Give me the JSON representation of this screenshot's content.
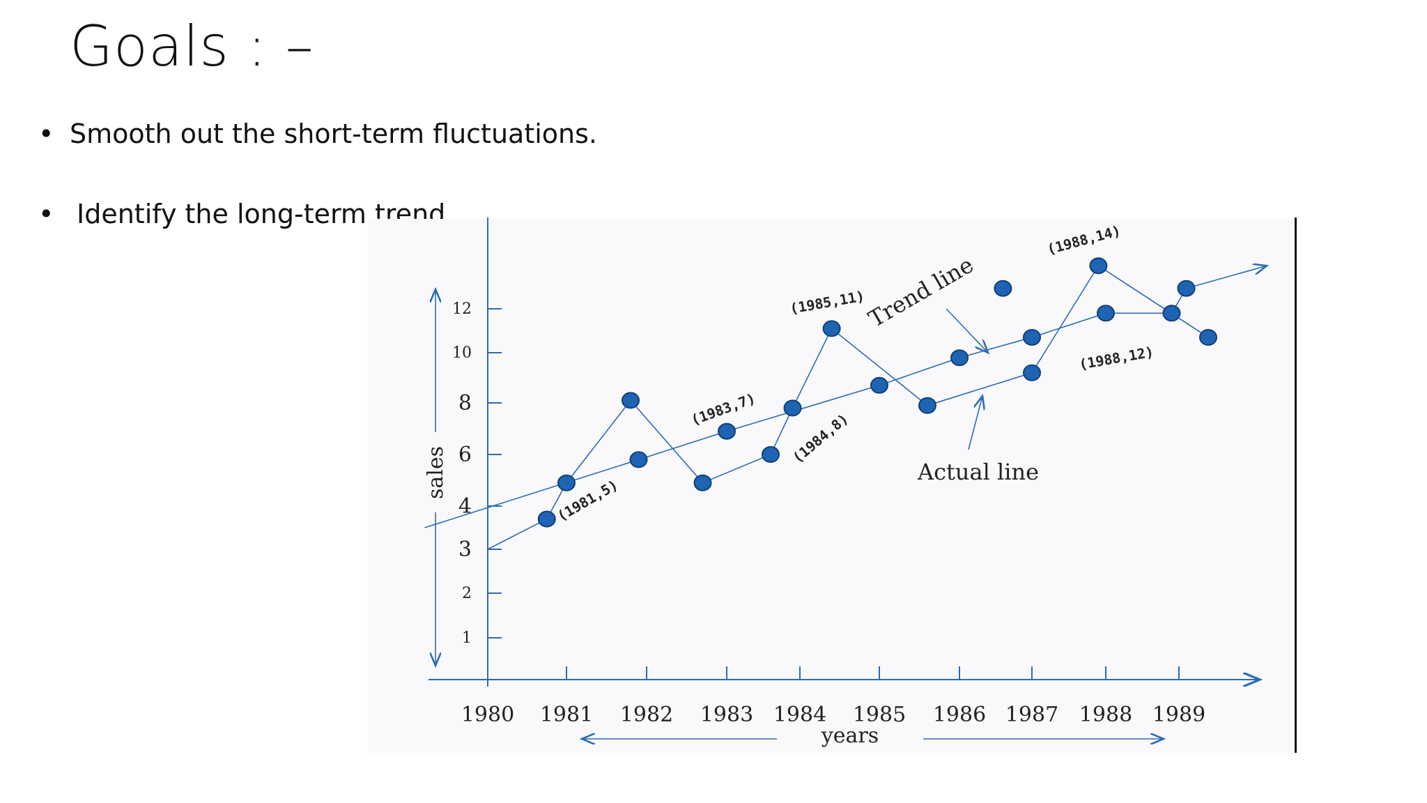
{
  "slide": {
    "title": "Goals : –",
    "bullets": [
      "Smooth out the short-term fluctuations.",
      "Identify the long-term trend"
    ]
  },
  "chart_data": {
    "type": "line",
    "xlabel": "years",
    "ylabel": "sales",
    "x_ticks": [
      "1980",
      "1981",
      "1982",
      "1983",
      "1984",
      "1985",
      "1986",
      "1987",
      "1988",
      "1989"
    ],
    "y_ticks": [
      "1",
      "2",
      "3",
      "4",
      "6",
      "8",
      "10",
      "12"
    ],
    "series": [
      {
        "name": "Actual line",
        "color": "#2a6bb5",
        "points": [
          {
            "x": 1980,
            "y": 3
          },
          {
            "x": 1980.75,
            "y": 3.7
          },
          {
            "x": 1981,
            "y": 4.9
          },
          {
            "x": 1981.8,
            "y": 8.1
          },
          {
            "x": 1982.7,
            "y": 4.9
          },
          {
            "x": 1983.6,
            "y": 6.0
          },
          {
            "x": 1983.9,
            "y": 7.8
          },
          {
            "x": 1984.4,
            "y": 11.1
          },
          {
            "x": 1985.6,
            "y": 7.9
          },
          {
            "x": 1987,
            "y": 9.2
          },
          {
            "x": 1987.9,
            "y": 13.9
          },
          {
            "x": 1989.4,
            "y": 10.7
          }
        ]
      },
      {
        "name": "Trend line",
        "color": "#2a6bb5",
        "points": [
          {
            "x": 1979.2,
            "y": 3.5
          },
          {
            "x": 1981.9,
            "y": 5.8
          },
          {
            "x": 1983.0,
            "y": 6.9
          },
          {
            "x": 1985.0,
            "y": 8.7
          },
          {
            "x": 1986.0,
            "y": 9.8
          },
          {
            "x": 1987.0,
            "y": 10.7
          },
          {
            "x": 1988.0,
            "y": 11.8
          },
          {
            "x": 1988.9,
            "y": 11.8
          },
          {
            "x": 1989.1,
            "y": 12.9
          },
          {
            "x": 1990.2,
            "y": 13.9
          }
        ]
      }
    ],
    "extra_points": [
      {
        "x": 1986.6,
        "y": 12.9
      }
    ],
    "annotations": [
      "(1981,5)",
      "(1983,7)",
      "(1984,8)",
      "(1985,11)",
      "(1988,14)",
      "(1988,12)"
    ],
    "labels": {
      "trend": "Trend line",
      "actual": "Actual line"
    }
  }
}
